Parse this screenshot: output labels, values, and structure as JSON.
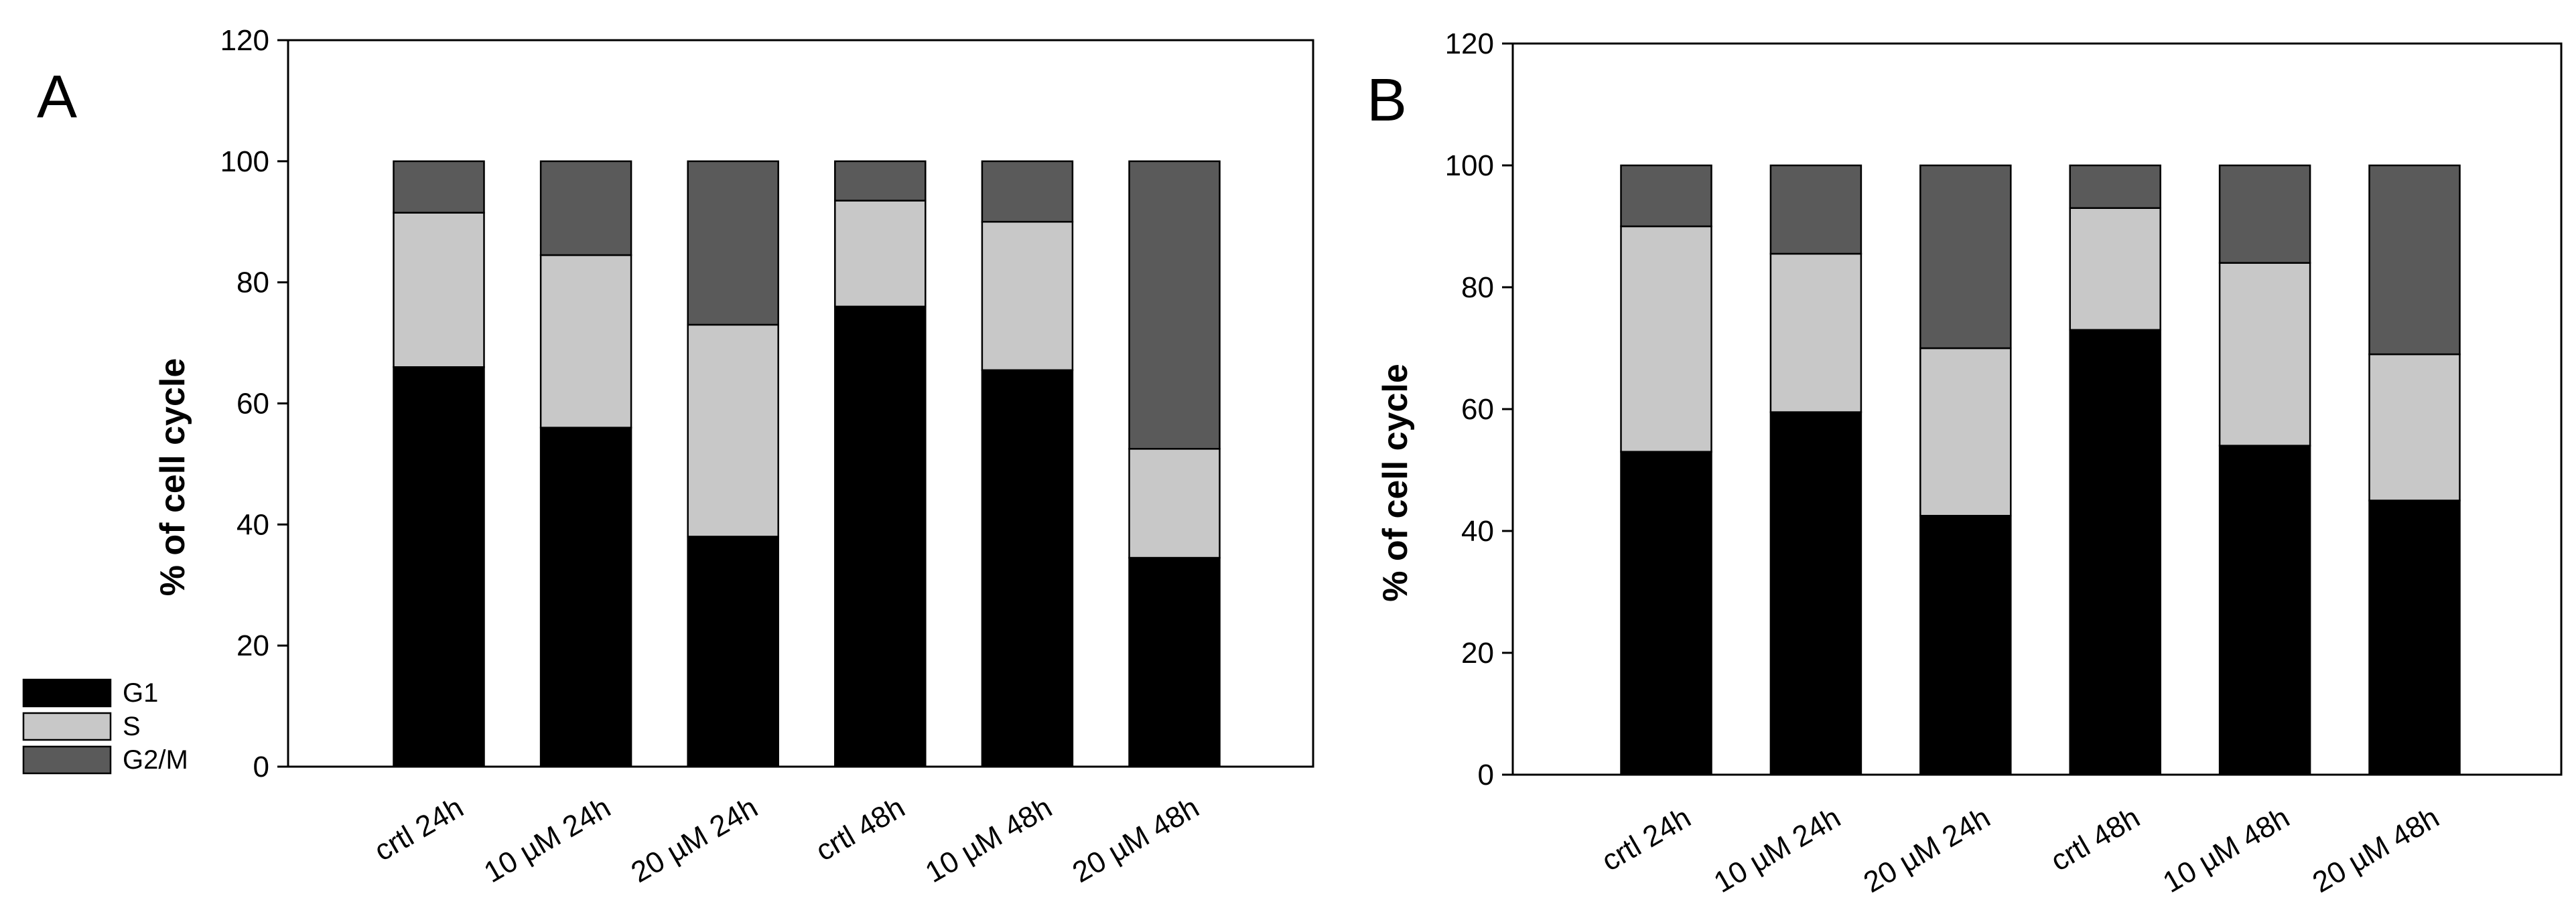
{
  "colors": {
    "G1": "#000000",
    "S": "#c8c8c8",
    "G2/M": "#5a5a5a",
    "axis": "#000000",
    "background": "#ffffff"
  },
  "legend": {
    "placement": "bottom-left",
    "items": [
      "G1",
      "S",
      "G2/M"
    ]
  },
  "chart_data": [
    {
      "type": "bar",
      "stacked": true,
      "panel_label": "A",
      "title": "",
      "xlabel": "",
      "ylabel": "% of cell cycle",
      "ylim": [
        0,
        120
      ],
      "yticks": [
        0,
        20,
        40,
        60,
        80,
        100,
        120
      ],
      "grid": false,
      "categories": [
        "crtl 24h",
        "10 µM 24h",
        "20 µM 24h",
        "crtl 48h",
        "10 µM 48h",
        "20 µM 48h"
      ],
      "series": [
        {
          "name": "G1",
          "values": [
            66,
            56,
            38,
            76,
            65.5,
            34.5
          ]
        },
        {
          "name": "S",
          "values": [
            25.5,
            28.5,
            35,
            17.5,
            24.5,
            18
          ]
        },
        {
          "name": "G2/M",
          "values": [
            8.5,
            15.5,
            27,
            6.5,
            10,
            47.5
          ]
        }
      ]
    },
    {
      "type": "bar",
      "stacked": true,
      "panel_label": "B",
      "title": "",
      "xlabel": "",
      "ylabel": "% of cell cycle",
      "ylim": [
        0,
        120
      ],
      "yticks": [
        0,
        20,
        40,
        60,
        80,
        100,
        120
      ],
      "grid": false,
      "categories": [
        "crtl 24h",
        "10 µM 24h",
        "20 µM 24h",
        "crtl 48h",
        "10 µM 48h",
        "20 µM 48h"
      ],
      "series": [
        {
          "name": "G1",
          "values": [
            53,
            59.5,
            42.5,
            73,
            54,
            45
          ]
        },
        {
          "name": "S",
          "values": [
            37,
            26,
            27.5,
            20,
            30,
            24
          ]
        },
        {
          "name": "G2/M",
          "values": [
            10,
            14.5,
            30,
            7,
            16,
            31
          ]
        }
      ]
    }
  ]
}
